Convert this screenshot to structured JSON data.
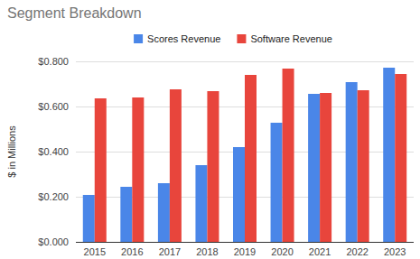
{
  "chart_data": {
    "type": "bar",
    "title": "Segment Breakdown",
    "y_label": "$ in Millions",
    "categories": [
      "2015",
      "2016",
      "2017",
      "2018",
      "2019",
      "2020",
      "2021",
      "2022",
      "2023"
    ],
    "series": [
      {
        "name": "Scores Revenue",
        "color": "#4a86e8",
        "values": [
          0.208,
          0.244,
          0.26,
          0.34,
          0.42,
          0.528,
          0.656,
          0.708,
          0.772
        ]
      },
      {
        "name": "Software Revenue",
        "color": "#e8453c",
        "values": [
          0.636,
          0.64,
          0.676,
          0.668,
          0.74,
          0.768,
          0.66,
          0.672,
          0.744
        ]
      }
    ],
    "ylim": [
      0,
      0.8
    ],
    "yticks": [
      {
        "value": 0,
        "label": "$0.000"
      },
      {
        "value": 0.2,
        "label": "$0.200"
      },
      {
        "value": 0.4,
        "label": "$0.400"
      },
      {
        "value": 0.6,
        "label": "$0.600"
      },
      {
        "value": 0.8,
        "label": "$0.800"
      }
    ],
    "grid": true,
    "legend": "top"
  }
}
